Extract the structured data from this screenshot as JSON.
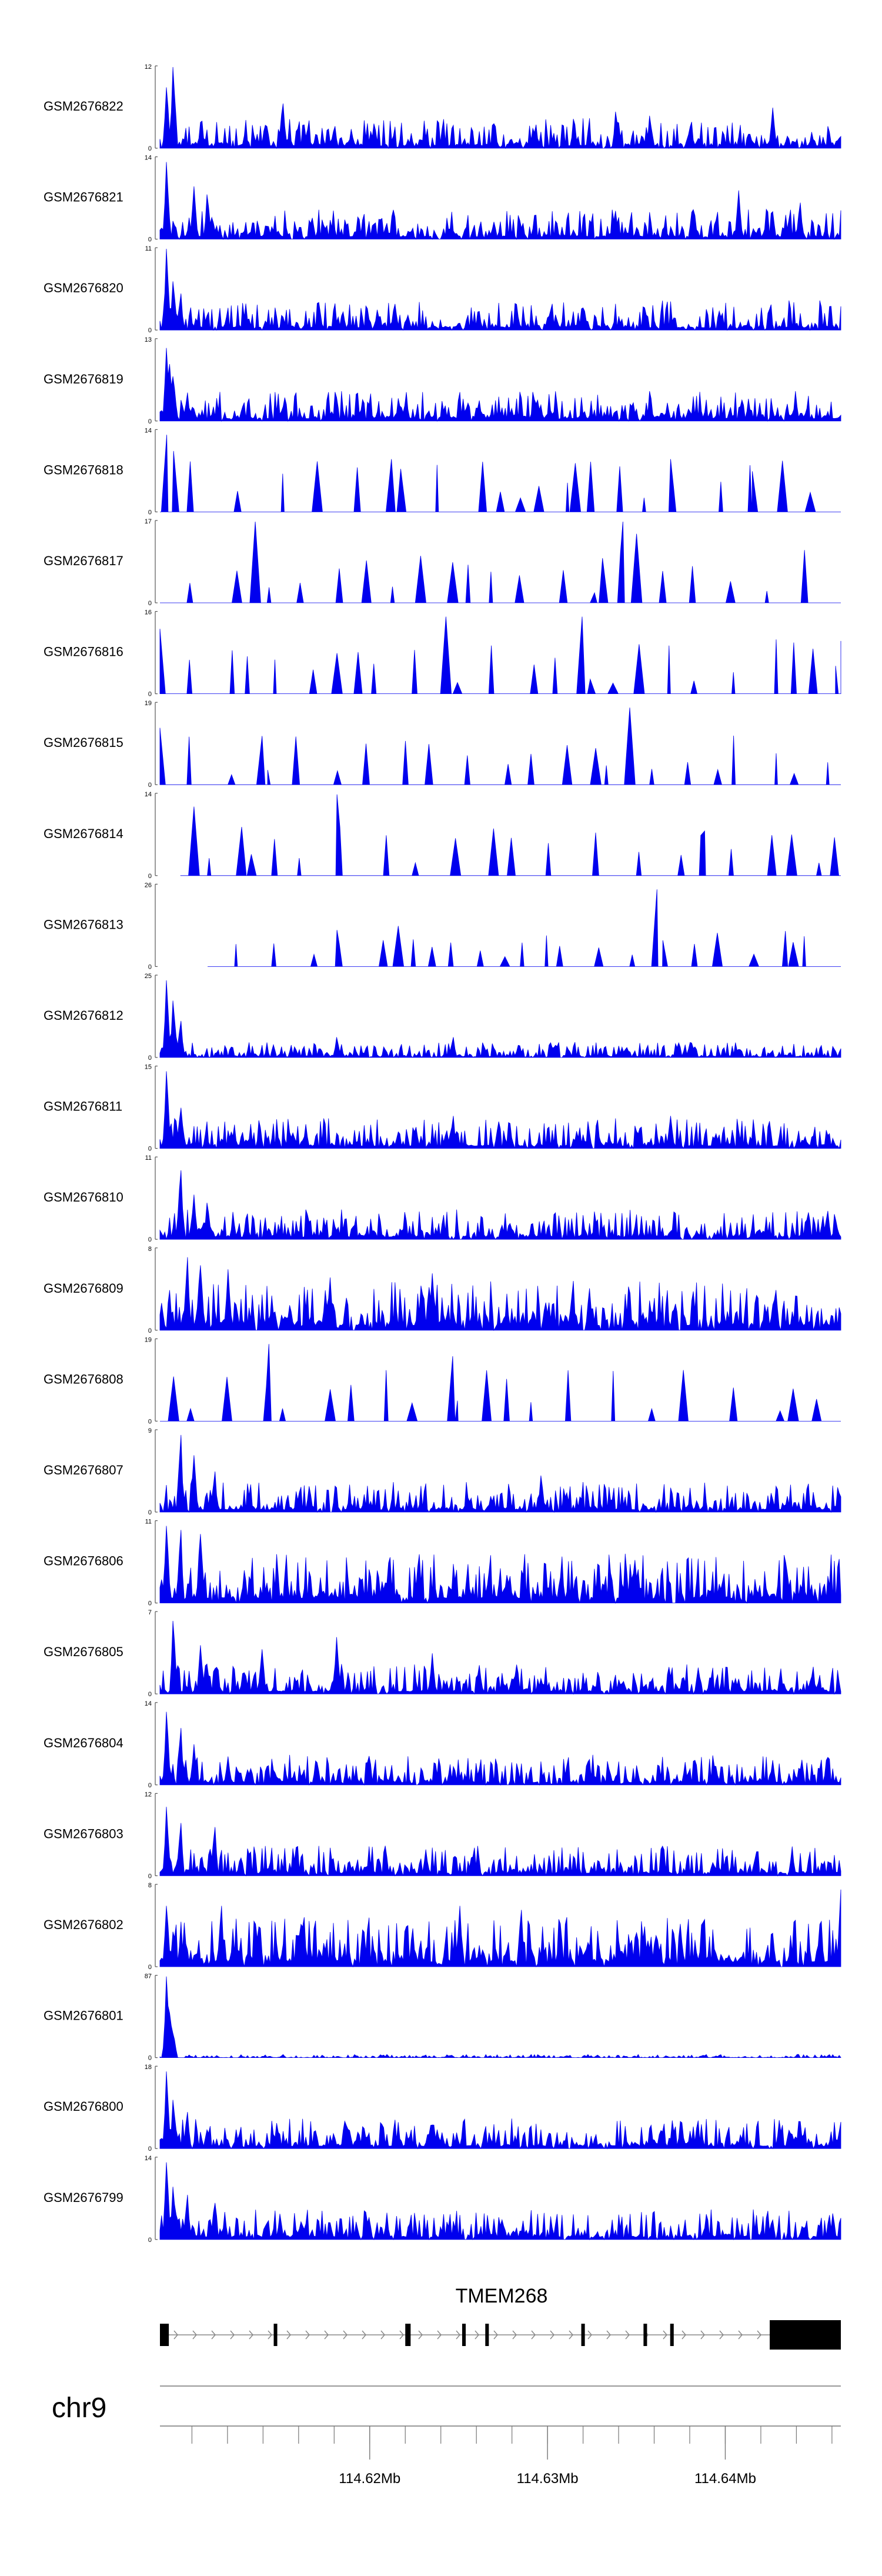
{
  "chart_data": {
    "type": "area",
    "title": "",
    "chromosome": "chr9",
    "gene": "TMEM268",
    "x_range_mb": [
      114.6082,
      114.6465
    ],
    "genome_axis_ticks": [
      {
        "value": 114.62,
        "label": "114.62Mb"
      },
      {
        "value": 114.63,
        "label": "114.63Mb"
      },
      {
        "value": 114.64,
        "label": "114.64Mb"
      }
    ],
    "minor_tick_step_mb": 0.002,
    "series": [
      {
        "name": "GSM2676822",
        "ymax": 12,
        "ymin": 0,
        "ymax_label": "12",
        "ymin_label": "0",
        "start": 0.0,
        "seed": 822,
        "style": "dense",
        "peaks": [
          [
            0.02,
            1.0
          ],
          [
            0.01,
            0.75
          ],
          [
            0.18,
            0.55
          ],
          [
            0.67,
            0.45
          ],
          [
            0.72,
            0.4
          ],
          [
            0.9,
            0.5
          ]
        ]
      },
      {
        "name": "GSM2676821",
        "ymax": 14,
        "ymin": 0,
        "ymax_label": "14",
        "ymin_label": "0",
        "start": 0.0,
        "seed": 821,
        "style": "dense",
        "peaks": [
          [
            0.01,
            0.95
          ],
          [
            0.05,
            0.65
          ],
          [
            0.07,
            0.55
          ],
          [
            0.85,
            0.6
          ],
          [
            0.94,
            0.45
          ]
        ]
      },
      {
        "name": "GSM2676820",
        "ymax": 11,
        "ymin": 0,
        "ymax_label": "11",
        "ymin_label": "0",
        "start": 0.0,
        "seed": 820,
        "style": "dense",
        "peaks": [
          [
            0.01,
            1.0
          ],
          [
            0.02,
            0.6
          ],
          [
            0.03,
            0.45
          ],
          [
            0.32,
            0.25
          ]
        ]
      },
      {
        "name": "GSM2676819",
        "ymax": 13,
        "ymin": 0,
        "ymax_label": "13",
        "ymin_label": "0",
        "start": 0.0,
        "seed": 819,
        "style": "dense",
        "peaks": [
          [
            0.01,
            0.9
          ],
          [
            0.015,
            0.7
          ],
          [
            0.02,
            0.55
          ],
          [
            0.04,
            0.35
          ]
        ]
      },
      {
        "name": "GSM2676818",
        "ymax": 14,
        "ymin": 0,
        "ymax_label": "14",
        "ymin_label": "0",
        "start": 0.0,
        "seed": 818,
        "style": "sparse",
        "peaks": [
          [
            0.01,
            0.95
          ],
          [
            0.02,
            0.75
          ],
          [
            0.34,
            0.65
          ],
          [
            0.61,
            0.6
          ],
          [
            0.75,
            0.65
          ],
          [
            0.87,
            0.5
          ]
        ]
      },
      {
        "name": "GSM2676817",
        "ymax": 17,
        "ymin": 0,
        "ymax_label": "17",
        "ymin_label": "0",
        "start": 0.0,
        "seed": 817,
        "style": "sparse",
        "peaks": [
          [
            0.14,
            1.0
          ],
          [
            0.68,
            1.0
          ],
          [
            0.7,
            0.85
          ],
          [
            0.43,
            0.5
          ],
          [
            0.65,
            0.55
          ]
        ]
      },
      {
        "name": "GSM2676816",
        "ymax": 16,
        "ymin": 0,
        "ymax_label": "16",
        "ymin_label": "0",
        "start": 0.0,
        "seed": 816,
        "style": "sparse",
        "peaks": [
          [
            0.42,
            0.95
          ],
          [
            0.62,
            0.95
          ],
          [
            0.0,
            0.8
          ],
          [
            1.0,
            0.65
          ],
          [
            0.26,
            0.5
          ]
        ]
      },
      {
        "name": "GSM2676815",
        "ymax": 19,
        "ymin": 0,
        "ymax_label": "19",
        "ymin_label": "0",
        "start": 0.0,
        "seed": 815,
        "style": "sparse",
        "peaks": [
          [
            0.69,
            0.95
          ],
          [
            0.15,
            0.6
          ],
          [
            0.64,
            0.45
          ],
          [
            0.0,
            0.7
          ]
        ]
      },
      {
        "name": "GSM2676814",
        "ymax": 14,
        "ymin": 0,
        "ymax_label": "14",
        "ymin_label": "0",
        "start": 0.03,
        "seed": 814,
        "style": "sparse",
        "peaks": [
          [
            0.26,
            1.0
          ],
          [
            0.05,
            0.85
          ],
          [
            0.12,
            0.6
          ],
          [
            0.8,
            0.55
          ]
        ]
      },
      {
        "name": "GSM2676813",
        "ymax": 26,
        "ymin": 0,
        "ymax_label": "26",
        "ymin_label": "0",
        "start": 0.07,
        "seed": 813,
        "style": "sparse_low",
        "peaks": [
          [
            0.73,
            0.95
          ],
          [
            0.35,
            0.5
          ],
          [
            0.26,
            0.45
          ],
          [
            0.93,
            0.3
          ]
        ]
      },
      {
        "name": "GSM2676812",
        "ymax": 25,
        "ymin": 0,
        "ymax_label": "25",
        "ymin_label": "0",
        "start": 0.0,
        "seed": 812,
        "style": "low",
        "peaks": [
          [
            0.01,
            0.95
          ],
          [
            0.02,
            0.7
          ],
          [
            0.03,
            0.45
          ],
          [
            0.26,
            0.25
          ],
          [
            0.43,
            0.25
          ]
        ]
      },
      {
        "name": "GSM2676811",
        "ymax": 15,
        "ymin": 0,
        "ymax_label": "15",
        "ymin_label": "0",
        "start": 0.0,
        "seed": 811,
        "style": "dense",
        "peaks": [
          [
            0.01,
            0.95
          ],
          [
            0.03,
            0.5
          ],
          [
            0.43,
            0.4
          ],
          [
            0.75,
            0.4
          ]
        ]
      },
      {
        "name": "GSM2676810",
        "ymax": 11,
        "ymin": 0,
        "ymax_label": "11",
        "ymin_label": "0",
        "start": 0.0,
        "seed": 810,
        "style": "dense",
        "peaks": [
          [
            0.03,
            0.85
          ],
          [
            0.05,
            0.55
          ],
          [
            0.07,
            0.45
          ],
          [
            0.98,
            0.35
          ]
        ]
      },
      {
        "name": "GSM2676809",
        "ymax": 8,
        "ymin": 0,
        "ymax_label": "8",
        "ymin_label": "0",
        "start": 0.0,
        "seed": 809,
        "style": "dense_high",
        "peaks": [
          [
            0.04,
            0.9
          ],
          [
            0.06,
            0.8
          ],
          [
            0.1,
            0.75
          ],
          [
            0.25,
            0.65
          ],
          [
            0.4,
            0.7
          ]
        ]
      },
      {
        "name": "GSM2676808",
        "ymax": 19,
        "ymin": 0,
        "ymax_label": "19",
        "ymin_label": "0",
        "start": 0.0,
        "seed": 808,
        "style": "sparse",
        "peaks": [
          [
            0.16,
            0.95
          ],
          [
            0.43,
            0.8
          ],
          [
            0.02,
            0.55
          ],
          [
            0.93,
            0.4
          ]
        ]
      },
      {
        "name": "GSM2676807",
        "ymax": 9,
        "ymin": 0,
        "ymax_label": "9",
        "ymin_label": "0",
        "start": 0.0,
        "seed": 807,
        "style": "dense",
        "peaks": [
          [
            0.03,
            0.95
          ],
          [
            0.05,
            0.7
          ],
          [
            0.08,
            0.5
          ],
          [
            0.56,
            0.45
          ]
        ]
      },
      {
        "name": "GSM2676806",
        "ymax": 11,
        "ymin": 0,
        "ymax_label": "11",
        "ymin_label": "0",
        "start": 0.0,
        "seed": 806,
        "style": "dense_high",
        "peaks": [
          [
            0.01,
            0.95
          ],
          [
            0.03,
            0.9
          ],
          [
            0.06,
            0.85
          ],
          [
            0.92,
            0.5
          ],
          [
            0.38,
            0.6
          ]
        ]
      },
      {
        "name": "GSM2676805",
        "ymax": 7,
        "ymin": 0,
        "ymax_label": "7",
        "ymin_label": "0",
        "start": 0.0,
        "seed": 805,
        "style": "dense",
        "peaks": [
          [
            0.02,
            0.9
          ],
          [
            0.06,
            0.6
          ],
          [
            0.15,
            0.55
          ],
          [
            0.26,
            0.7
          ],
          [
            0.4,
            0.5
          ]
        ]
      },
      {
        "name": "GSM2676804",
        "ymax": 14,
        "ymin": 0,
        "ymax_label": "14",
        "ymin_label": "0",
        "start": 0.0,
        "seed": 804,
        "style": "dense",
        "peaks": [
          [
            0.01,
            0.9
          ],
          [
            0.03,
            0.7
          ],
          [
            0.05,
            0.5
          ],
          [
            0.1,
            0.35
          ]
        ]
      },
      {
        "name": "GSM2676803",
        "ymax": 12,
        "ymin": 0,
        "ymax_label": "12",
        "ymin_label": "0",
        "start": 0.0,
        "seed": 803,
        "style": "dense",
        "peaks": [
          [
            0.01,
            0.85
          ],
          [
            0.03,
            0.65
          ],
          [
            0.08,
            0.6
          ],
          [
            0.2,
            0.35
          ]
        ]
      },
      {
        "name": "GSM2676802",
        "ymax": 8,
        "ymin": 0,
        "ymax_label": "8",
        "ymin_label": "0",
        "start": 0.0,
        "seed": 802,
        "style": "dense_high",
        "peaks": [
          [
            0.01,
            0.75
          ],
          [
            0.09,
            0.75
          ],
          [
            0.44,
            0.75
          ],
          [
            0.53,
            0.7
          ],
          [
            1.0,
            0.95
          ]
        ]
      },
      {
        "name": "GSM2676801",
        "ymax": 87,
        "ymin": 0,
        "ymax_label": "87",
        "ymin_label": "0",
        "start": 0.0,
        "seed": 801,
        "style": "flat",
        "peaks": [
          [
            0.01,
            1.0
          ],
          [
            0.015,
            0.55
          ],
          [
            0.02,
            0.3
          ]
        ]
      },
      {
        "name": "GSM2676800",
        "ymax": 18,
        "ymin": 0,
        "ymax_label": "18",
        "ymin_label": "0",
        "start": 0.0,
        "seed": 800,
        "style": "dense",
        "peaks": [
          [
            0.01,
            0.95
          ],
          [
            0.02,
            0.6
          ],
          [
            0.04,
            0.45
          ],
          [
            0.91,
            0.35
          ]
        ]
      },
      {
        "name": "GSM2676799",
        "ymax": 14,
        "ymin": 0,
        "ymax_label": "14",
        "ymin_label": "0",
        "start": 0.0,
        "seed": 799,
        "style": "dense",
        "peaks": [
          [
            0.01,
            0.95
          ],
          [
            0.02,
            0.65
          ],
          [
            0.04,
            0.55
          ],
          [
            0.08,
            0.45
          ]
        ]
      }
    ],
    "gene_model": {
      "name": "TMEM268",
      "strand": "+",
      "start_mb": 114.6082,
      "end_mb": 114.6465,
      "exons_mb": [
        [
          114.6082,
          114.6087
        ],
        [
          114.6146,
          114.6148
        ],
        [
          114.622,
          114.6223
        ],
        [
          114.6252,
          114.6254
        ],
        [
          114.6265,
          114.6267
        ],
        [
          114.6319,
          114.6321
        ],
        [
          114.6354,
          114.6356
        ],
        [
          114.6369,
          114.6371
        ],
        [
          114.6425,
          114.6465
        ]
      ]
    },
    "colors": {
      "signal": "#0000ee",
      "axis": "#555555",
      "gene": "#000000",
      "genome_axis": "#777777"
    }
  }
}
